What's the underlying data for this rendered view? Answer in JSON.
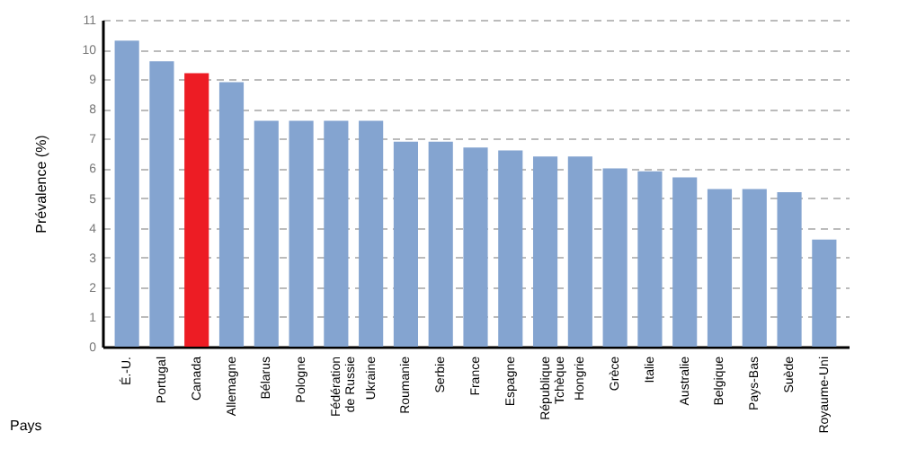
{
  "chart_data": {
    "type": "bar",
    "xlabel": "Pays",
    "ylabel": "Prévalence (%)",
    "categories": [
      "É.-U.",
      "Portugal",
      "Canada",
      "Allemagne",
      "Bélarus",
      "Pologne",
      "Fédération\nde Russie",
      "Ukraine",
      "Roumanie",
      "Serbie",
      "France",
      "Espagne",
      "République\nTchèque",
      "Hongrie",
      "Grèce",
      "Italie",
      "Australie",
      "Belgique",
      "Pays-Bas",
      "Suède",
      "Royaume-Uni"
    ],
    "values": [
      10.3,
      9.6,
      9.2,
      8.9,
      7.6,
      7.6,
      7.6,
      7.6,
      6.9,
      6.9,
      6.7,
      6.6,
      6.4,
      6.4,
      6.0,
      5.9,
      5.7,
      5.3,
      5.3,
      5.2,
      3.6
    ],
    "colors": [
      "#84a4d0",
      "#84a4d0",
      "#ed1c24",
      "#84a4d0",
      "#84a4d0",
      "#84a4d0",
      "#84a4d0",
      "#84a4d0",
      "#84a4d0",
      "#84a4d0",
      "#84a4d0",
      "#84a4d0",
      "#84a4d0",
      "#84a4d0",
      "#84a4d0",
      "#84a4d0",
      "#84a4d0",
      "#84a4d0",
      "#84a4d0",
      "#84a4d0",
      "#84a4d0"
    ],
    "ylim": [
      0,
      11
    ],
    "yticks": [
      0,
      1,
      2,
      3,
      4,
      5,
      6,
      7,
      8,
      9,
      10,
      11
    ],
    "grid": "y"
  }
}
